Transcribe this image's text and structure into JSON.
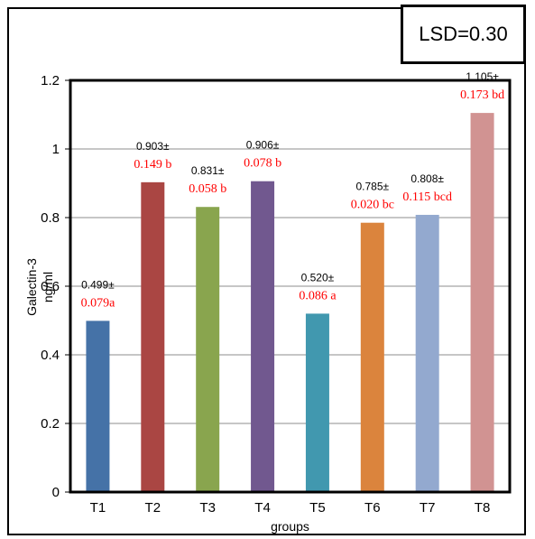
{
  "lsd_label": "LSD=0.30",
  "chart_data": {
    "type": "bar",
    "categories": [
      "T1",
      "T2",
      "T3",
      "T4",
      "T5",
      "T6",
      "T7",
      "T8"
    ],
    "values": [
      0.499,
      0.903,
      0.831,
      0.906,
      0.52,
      0.785,
      0.808,
      1.105
    ],
    "data_labels_mean": [
      "0.499±",
      "0.903±",
      "0.831±",
      "0.906±",
      "0.520±",
      "0.785±",
      "0.808±",
      "1.105±"
    ],
    "data_labels_sd": [
      "0.079a",
      "0.149 b",
      "0.058 b",
      "0.078 b",
      "0.086  a",
      "0.020 bc",
      "0.115 bcd",
      "0.173 bd"
    ],
    "colors": [
      "#4572a7",
      "#aa4643",
      "#89a54e",
      "#71588f",
      "#4198af",
      "#db843d",
      "#93a9cf",
      "#d19392"
    ],
    "ylim": [
      0,
      1.2
    ],
    "yticks": [
      "0",
      "0.2",
      "0.4",
      "0.6",
      "0.8",
      "1",
      "1.2"
    ],
    "xlabel": "groups",
    "ylabel_line1": "Galectin-3",
    "ylabel_line2": "ng/ml",
    "grid": true
  }
}
